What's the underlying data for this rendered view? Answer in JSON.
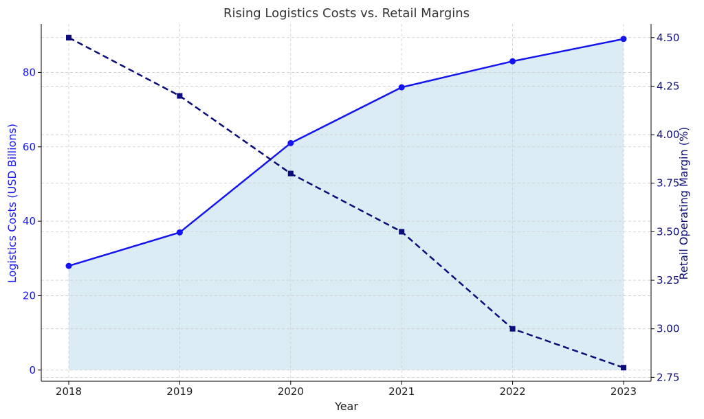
{
  "chart_data": {
    "type": "line",
    "title": "Rising Logistics Costs vs. Retail Margins",
    "xlabel": "Year",
    "x": [
      "2018",
      "2019",
      "2020",
      "2021",
      "2022",
      "2023"
    ],
    "grid": true,
    "y_left": {
      "label": "Logistics Costs (USD Billions)",
      "ylim": [
        -3,
        93
      ],
      "ticks": [
        "0",
        "20",
        "40",
        "60",
        "80"
      ],
      "tick_values": [
        0,
        20,
        40,
        60,
        80
      ],
      "color": "#1414f0"
    },
    "y_right": {
      "label": "Retail Operating Margin (%)",
      "ylim": [
        2.73,
        4.57
      ],
      "ticks": [
        "2.75",
        "3.00",
        "3.25",
        "3.50",
        "3.75",
        "4.00",
        "4.25",
        "4.50"
      ],
      "tick_values": [
        2.75,
        3.0,
        3.25,
        3.5,
        3.75,
        4.0,
        4.25,
        4.5
      ],
      "color": "#0c0c7a"
    },
    "series": [
      {
        "axis": "left",
        "values": [
          28,
          37,
          61,
          76,
          83,
          89
        ],
        "color": "#1414f0",
        "fill": "#dcecf4",
        "style": "solid",
        "marker": "circle"
      },
      {
        "axis": "right",
        "values": [
          4.5,
          4.2,
          3.8,
          3.5,
          3.0,
          2.8
        ],
        "color": "#0c0c7a",
        "style": "dashed",
        "marker": "square"
      }
    ]
  }
}
